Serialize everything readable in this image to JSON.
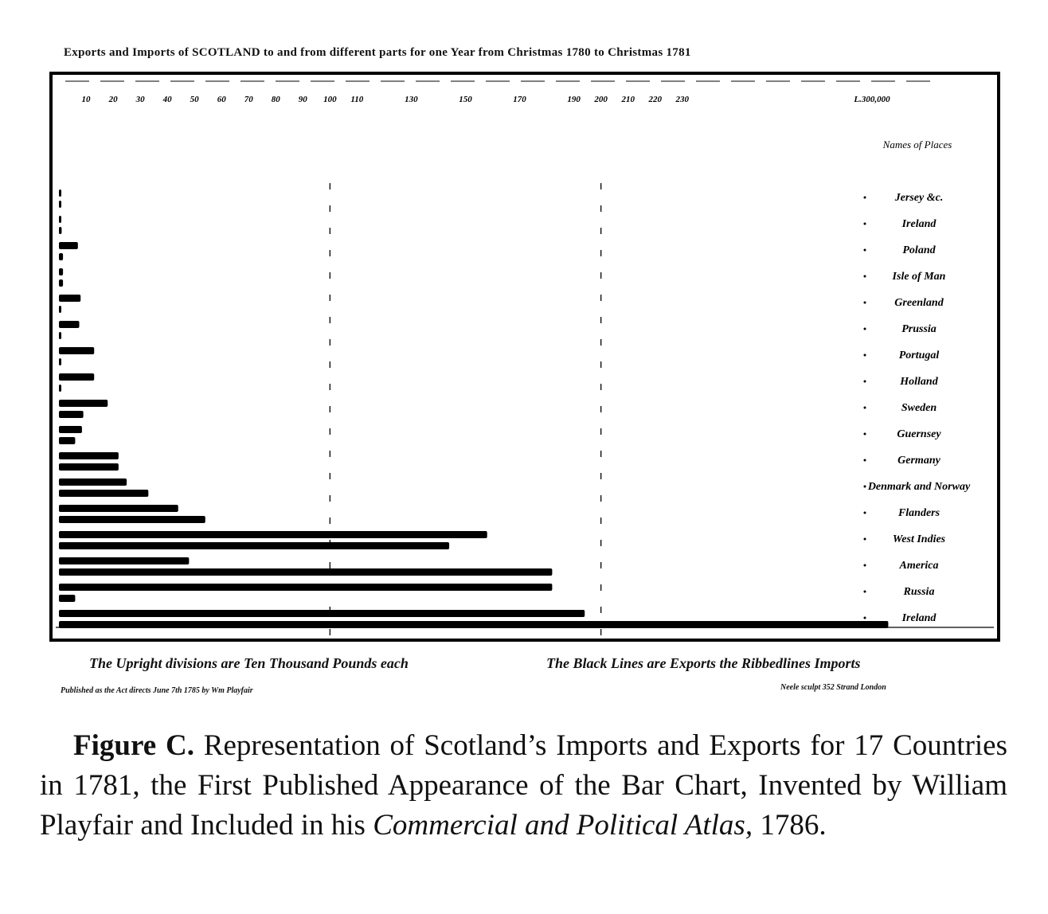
{
  "chart_data": {
    "type": "bar",
    "title": "Exports and Imports of SCOTLAND to and from different parts for one Year from Christmas 1780 to Christmas 1781",
    "x_ticks": [
      "10",
      "20",
      "30",
      "40",
      "50",
      "60",
      "70",
      "80",
      "90",
      "100",
      "110",
      "130",
      "150",
      "170",
      "190",
      "200",
      "210",
      "220",
      "230",
      "L.300,000"
    ],
    "x_tick_values": [
      10,
      20,
      30,
      40,
      50,
      60,
      70,
      80,
      90,
      100,
      110,
      130,
      150,
      170,
      190,
      200,
      210,
      220,
      230,
      300
    ],
    "xlim": [
      0,
      305
    ],
    "axis_header": "Names of Places",
    "categories": [
      "Jersey &c.",
      "Ireland",
      "Poland",
      "Isle of Man",
      "Greenland",
      "Prussia",
      "Portugal",
      "Holland",
      "Sweden",
      "Guernsey",
      "Germany",
      "Denmark and Norway",
      "Flanders",
      "West Indies",
      "America",
      "Russia",
      "Ireland"
    ],
    "series": [
      {
        "name": "Exports",
        "values": [
          0.5,
          0.5,
          7,
          1.5,
          8,
          7.5,
          13,
          13,
          18,
          8.5,
          22,
          25,
          44,
          158,
          48,
          182,
          194
        ]
      },
      {
        "name": "Imports",
        "values": [
          0.5,
          1,
          1.5,
          1.5,
          0.5,
          0.5,
          0.5,
          0.5,
          9,
          6,
          22,
          33,
          54,
          144,
          182,
          6,
          306
        ]
      }
    ],
    "footnote_left": "The Upright divisions are Ten Thousand Pounds each",
    "footnote_right": "The Black Lines are Exports the Ribbedlines Imports",
    "publisher_left": "Published as the Act directs June 7th 1785 by Wm Playfair",
    "publisher_right": "Neele sculpt 352 Strand London",
    "bar_color": "#000000"
  },
  "caption": {
    "lead": "Figure C.",
    "text_before_italic": " Representation of Scotland’s Imports and Exports for 17 Countries in 1781, the First Published Appearance of the Bar Chart, Invented by William Playfair and Included in his ",
    "italic": "Commercial and Political Atlas,",
    "text_after_italic": " 1786."
  }
}
